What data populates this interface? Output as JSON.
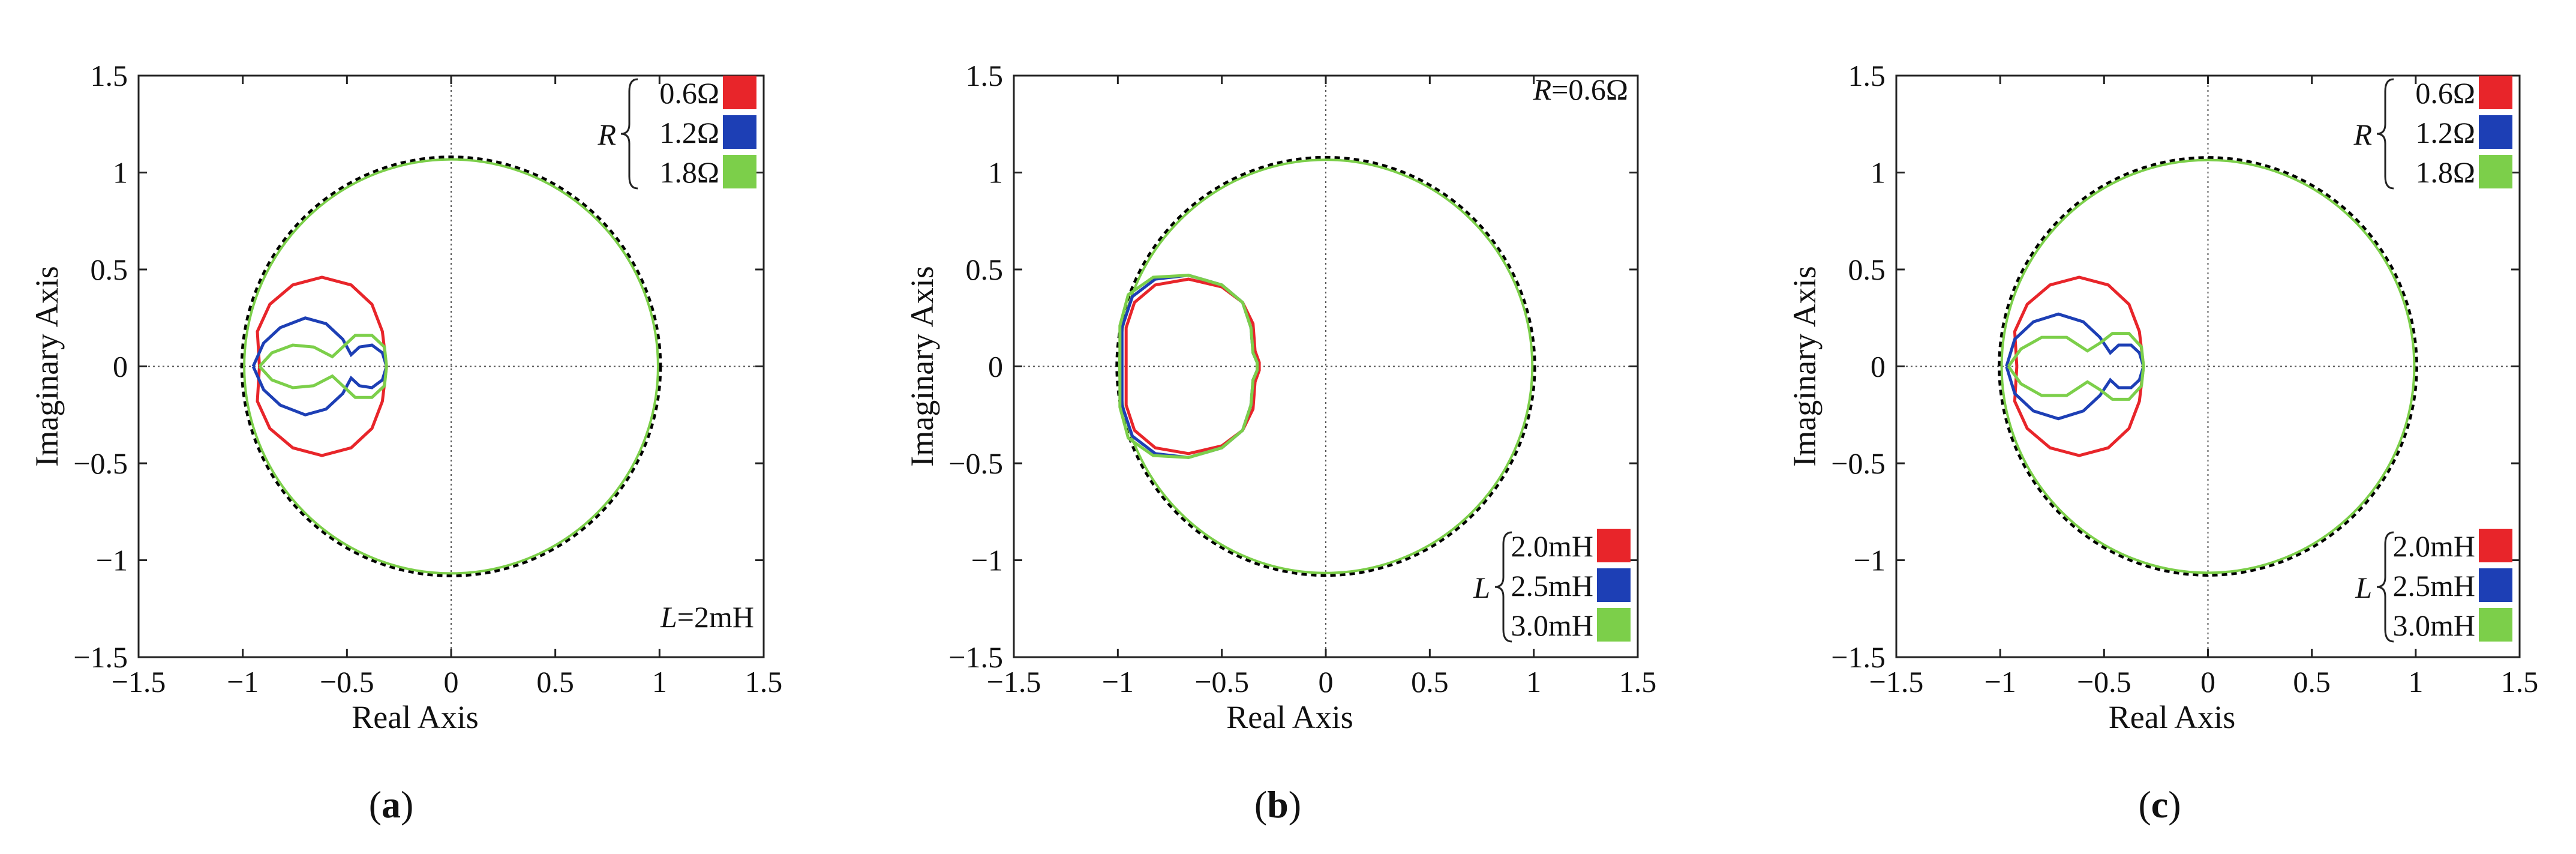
{
  "chart_data": [
    {
      "type": "line",
      "caption": "a",
      "xlabel": "Real Axis",
      "ylabel": "Imaginary Axis",
      "xlim": [
        -1.5,
        1.5
      ],
      "ylim": [
        -1.5,
        1.5
      ],
      "xticks": [
        "−1.5",
        "−1",
        "−0.5",
        "0",
        "0.5",
        "1",
        "1.5"
      ],
      "yticks": [
        "1.5",
        "1",
        "0.5",
        "0",
        "−0.5",
        "−1",
        "−1.5"
      ],
      "annotation": {
        "param": "L",
        "text": "=2mH"
      },
      "legend": {
        "param": "R",
        "entries": [
          "0.6Ω",
          "1.2Ω",
          "1.8Ω"
        ],
        "colors": [
          "#e8252a",
          "#1d3fb5",
          "#7ccf4a"
        ]
      },
      "series": [
        {
          "name": "0.6Ω",
          "color": "#e8252a",
          "points": [
            [
              -0.92,
              0
            ],
            [
              -0.93,
              0.18
            ],
            [
              -0.87,
              0.32
            ],
            [
              -0.76,
              0.42
            ],
            [
              -0.62,
              0.46
            ],
            [
              -0.48,
              0.42
            ],
            [
              -0.38,
              0.32
            ],
            [
              -0.33,
              0.18
            ],
            [
              -0.31,
              0
            ],
            [
              -0.33,
              -0.18
            ],
            [
              -0.38,
              -0.32
            ],
            [
              -0.48,
              -0.42
            ],
            [
              -0.62,
              -0.46
            ],
            [
              -0.76,
              -0.42
            ],
            [
              -0.87,
              -0.32
            ],
            [
              -0.93,
              -0.18
            ],
            [
              -0.92,
              0
            ]
          ]
        },
        {
          "name": "1.2Ω",
          "color": "#1d3fb5",
          "points": [
            [
              -0.95,
              0
            ],
            [
              -0.9,
              0.12
            ],
            [
              -0.82,
              0.2
            ],
            [
              -0.7,
              0.25
            ],
            [
              -0.6,
              0.22
            ],
            [
              -0.52,
              0.14
            ],
            [
              -0.48,
              0.06
            ],
            [
              -0.44,
              0.1
            ],
            [
              -0.38,
              0.11
            ],
            [
              -0.33,
              0.07
            ],
            [
              -0.31,
              0
            ],
            [
              -0.33,
              -0.07
            ],
            [
              -0.38,
              -0.11
            ],
            [
              -0.44,
              -0.1
            ],
            [
              -0.48,
              -0.06
            ],
            [
              -0.52,
              -0.14
            ],
            [
              -0.6,
              -0.22
            ],
            [
              -0.7,
              -0.25
            ],
            [
              -0.82,
              -0.2
            ],
            [
              -0.9,
              -0.12
            ],
            [
              -0.95,
              0
            ]
          ]
        },
        {
          "name": "1.8Ω",
          "color": "#7ccf4a",
          "points": [
            [
              -0.92,
              0
            ],
            [
              -0.86,
              0.07
            ],
            [
              -0.76,
              0.11
            ],
            [
              -0.66,
              0.1
            ],
            [
              -0.57,
              0.05
            ],
            [
              -0.52,
              0.1
            ],
            [
              -0.46,
              0.16
            ],
            [
              -0.38,
              0.16
            ],
            [
              -0.32,
              0.1
            ],
            [
              -0.31,
              0
            ],
            [
              -0.32,
              -0.1
            ],
            [
              -0.38,
              -0.16
            ],
            [
              -0.46,
              -0.16
            ],
            [
              -0.52,
              -0.1
            ],
            [
              -0.57,
              -0.05
            ],
            [
              -0.66,
              -0.1
            ],
            [
              -0.76,
              -0.11
            ],
            [
              -0.86,
              -0.07
            ],
            [
              -0.92,
              0
            ]
          ]
        }
      ]
    },
    {
      "type": "line",
      "caption": "b",
      "xlabel": "Real Axis",
      "ylabel": "Imaginary Axis",
      "xlim": [
        -1.5,
        1.5
      ],
      "ylim": [
        -1.5,
        1.5
      ],
      "xticks": [
        "−1.5",
        "−1",
        "−0.5",
        "0",
        "0.5",
        "1",
        "1.5"
      ],
      "yticks": [
        "1.5",
        "1",
        "0.5",
        "0",
        "−0.5",
        "−1",
        "−1.5"
      ],
      "annotation": {
        "param": "R",
        "text": "=0.6Ω"
      },
      "legend": {
        "param": "L",
        "entries": [
          "2.0mH",
          "2.5mH",
          "3.0mH"
        ],
        "colors": [
          "#e8252a",
          "#1d3fb5",
          "#7ccf4a"
        ]
      },
      "series": [
        {
          "name": "2.0mH",
          "color": "#e8252a",
          "points": [
            [
              -0.96,
              0
            ],
            [
              -0.96,
              0.2
            ],
            [
              -0.92,
              0.33
            ],
            [
              -0.82,
              0.42
            ],
            [
              -0.66,
              0.45
            ],
            [
              -0.5,
              0.41
            ],
            [
              -0.4,
              0.33
            ],
            [
              -0.35,
              0.22
            ],
            [
              -0.34,
              0.08
            ],
            [
              -0.32,
              0.02
            ],
            [
              -0.32,
              -0.02
            ],
            [
              -0.34,
              -0.08
            ],
            [
              -0.35,
              -0.22
            ],
            [
              -0.4,
              -0.33
            ],
            [
              -0.5,
              -0.41
            ],
            [
              -0.66,
              -0.45
            ],
            [
              -0.82,
              -0.42
            ],
            [
              -0.92,
              -0.33
            ],
            [
              -0.96,
              -0.2
            ],
            [
              -0.96,
              0
            ]
          ]
        },
        {
          "name": "2.5mH",
          "color": "#1d3fb5",
          "points": [
            [
              -0.98,
              0
            ],
            [
              -0.98,
              0.2
            ],
            [
              -0.93,
              0.36
            ],
            [
              -0.82,
              0.45
            ],
            [
              -0.66,
              0.47
            ],
            [
              -0.5,
              0.42
            ],
            [
              -0.4,
              0.33
            ],
            [
              -0.36,
              0.2
            ],
            [
              -0.35,
              0.07
            ],
            [
              -0.33,
              0.02
            ],
            [
              -0.33,
              -0.02
            ],
            [
              -0.35,
              -0.07
            ],
            [
              -0.36,
              -0.2
            ],
            [
              -0.4,
              -0.33
            ],
            [
              -0.5,
              -0.42
            ],
            [
              -0.66,
              -0.47
            ],
            [
              -0.82,
              -0.45
            ],
            [
              -0.93,
              -0.36
            ],
            [
              -0.98,
              -0.2
            ],
            [
              -0.98,
              0
            ]
          ]
        },
        {
          "name": "3.0mH",
          "color": "#7ccf4a",
          "points": [
            [
              -0.99,
              0
            ],
            [
              -0.99,
              0.21
            ],
            [
              -0.95,
              0.37
            ],
            [
              -0.83,
              0.46
            ],
            [
              -0.66,
              0.47
            ],
            [
              -0.5,
              0.42
            ],
            [
              -0.4,
              0.33
            ],
            [
              -0.36,
              0.2
            ],
            [
              -0.35,
              0.07
            ],
            [
              -0.33,
              0.02
            ],
            [
              -0.33,
              -0.02
            ],
            [
              -0.35,
              -0.07
            ],
            [
              -0.36,
              -0.2
            ],
            [
              -0.4,
              -0.33
            ],
            [
              -0.5,
              -0.42
            ],
            [
              -0.66,
              -0.47
            ],
            [
              -0.83,
              -0.46
            ],
            [
              -0.95,
              -0.37
            ],
            [
              -0.99,
              -0.21
            ],
            [
              -0.99,
              0
            ]
          ]
        }
      ]
    },
    {
      "type": "line",
      "caption": "c",
      "xlabel": "Real Axis",
      "ylabel": "Imaginary Axis",
      "xlim": [
        -1.5,
        1.5
      ],
      "ylim": [
        -1.5,
        1.5
      ],
      "xticks": [
        "−1.5",
        "−1",
        "−0.5",
        "0",
        "0.5",
        "1",
        "1.5"
      ],
      "yticks": [
        "1.5",
        "1",
        "0.5",
        "0",
        "−0.5",
        "−1",
        "−1.5"
      ],
      "legend_top": {
        "param": "R",
        "entries": [
          "0.6Ω",
          "1.2Ω",
          "1.8Ω"
        ],
        "colors": [
          "#e8252a",
          "#1d3fb5",
          "#7ccf4a"
        ]
      },
      "legend_bottom": {
        "param": "L",
        "entries": [
          "2.0mH",
          "2.5mH",
          "3.0mH"
        ],
        "colors": [
          "#e8252a",
          "#1d3fb5",
          "#7ccf4a"
        ]
      },
      "series": [
        {
          "name": "0.6Ω / 2.0mH",
          "color": "#e8252a",
          "points": [
            [
              -0.92,
              0
            ],
            [
              -0.93,
              0.18
            ],
            [
              -0.87,
              0.32
            ],
            [
              -0.76,
              0.42
            ],
            [
              -0.62,
              0.46
            ],
            [
              -0.48,
              0.42
            ],
            [
              -0.38,
              0.32
            ],
            [
              -0.33,
              0.18
            ],
            [
              -0.31,
              0
            ],
            [
              -0.33,
              -0.18
            ],
            [
              -0.38,
              -0.32
            ],
            [
              -0.48,
              -0.42
            ],
            [
              -0.62,
              -0.46
            ],
            [
              -0.76,
              -0.42
            ],
            [
              -0.87,
              -0.32
            ],
            [
              -0.93,
              -0.18
            ],
            [
              -0.92,
              0
            ]
          ]
        },
        {
          "name": "1.2Ω / 2.5mH",
          "color": "#1d3fb5",
          "points": [
            [
              -0.97,
              0
            ],
            [
              -0.93,
              0.14
            ],
            [
              -0.84,
              0.23
            ],
            [
              -0.72,
              0.27
            ],
            [
              -0.6,
              0.23
            ],
            [
              -0.52,
              0.15
            ],
            [
              -0.47,
              0.07
            ],
            [
              -0.43,
              0.11
            ],
            [
              -0.37,
              0.11
            ],
            [
              -0.33,
              0.07
            ],
            [
              -0.31,
              0
            ],
            [
              -0.33,
              -0.07
            ],
            [
              -0.37,
              -0.11
            ],
            [
              -0.43,
              -0.11
            ],
            [
              -0.47,
              -0.07
            ],
            [
              -0.52,
              -0.15
            ],
            [
              -0.6,
              -0.23
            ],
            [
              -0.72,
              -0.27
            ],
            [
              -0.84,
              -0.23
            ],
            [
              -0.93,
              -0.14
            ],
            [
              -0.97,
              0
            ]
          ]
        },
        {
          "name": "1.8Ω / 3.0mH",
          "color": "#7ccf4a",
          "points": [
            [
              -0.96,
              0
            ],
            [
              -0.9,
              0.09
            ],
            [
              -0.8,
              0.15
            ],
            [
              -0.68,
              0.15
            ],
            [
              -0.58,
              0.08
            ],
            [
              -0.52,
              0.12
            ],
            [
              -0.46,
              0.17
            ],
            [
              -0.38,
              0.17
            ],
            [
              -0.32,
              0.1
            ],
            [
              -0.31,
              0
            ],
            [
              -0.32,
              -0.1
            ],
            [
              -0.38,
              -0.17
            ],
            [
              -0.46,
              -0.17
            ],
            [
              -0.52,
              -0.12
            ],
            [
              -0.58,
              -0.08
            ],
            [
              -0.68,
              -0.15
            ],
            [
              -0.8,
              -0.15
            ],
            [
              -0.9,
              -0.09
            ],
            [
              -0.96,
              0
            ]
          ]
        }
      ]
    }
  ]
}
